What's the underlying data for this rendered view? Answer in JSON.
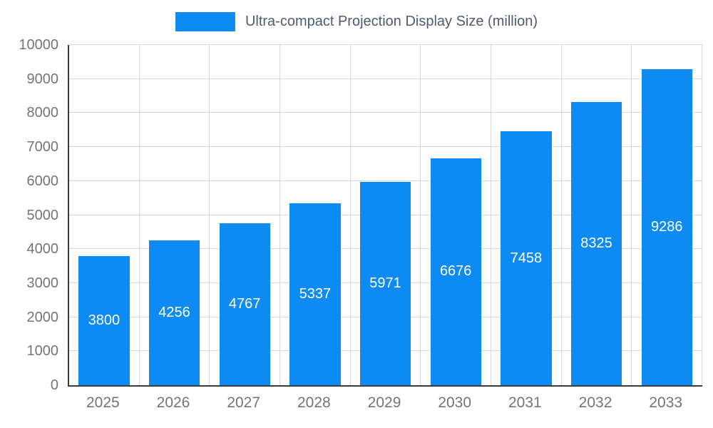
{
  "chart_data": {
    "type": "bar",
    "title": "Ultra-compact Projection Display Size (million)",
    "categories": [
      "2025",
      "2026",
      "2027",
      "2028",
      "2029",
      "2030",
      "2031",
      "2032",
      "2033"
    ],
    "values": [
      3800,
      4256,
      4767,
      5337,
      5971,
      6676,
      7458,
      8325,
      9286
    ],
    "xlabel": "",
    "ylabel": "",
    "ylim": [
      0,
      10000
    ],
    "yticks": [
      0,
      1000,
      2000,
      3000,
      4000,
      5000,
      6000,
      7000,
      8000,
      9000,
      10000
    ],
    "grid": "on",
    "legend_position": "top-center",
    "colors": {
      "bar": "#0d8bf2",
      "bar_label": "#ffffff",
      "axis": "#3b3b3b",
      "grid": "#d8d8d8",
      "tick_label": "#757575",
      "legend_text": "#4d5c6e",
      "background": "#ffffff"
    }
  }
}
